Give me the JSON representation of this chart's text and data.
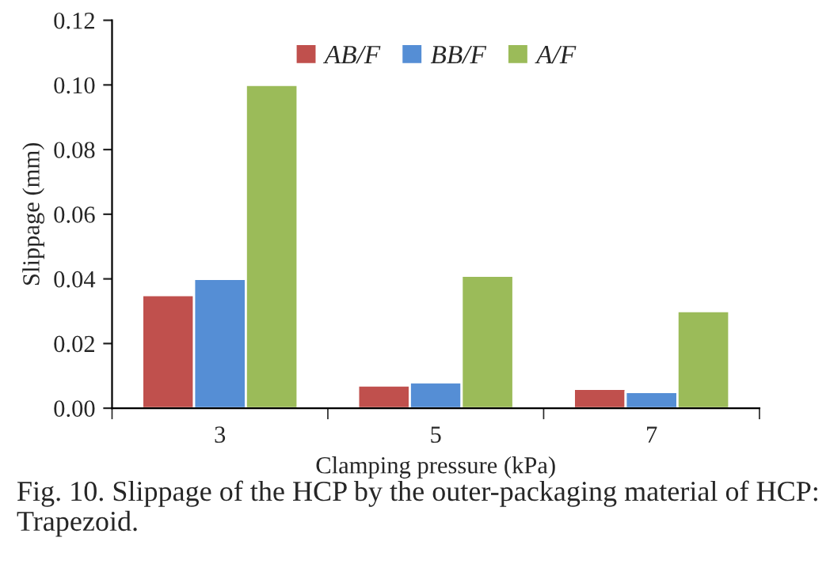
{
  "chart_data": {
    "type": "bar",
    "xlabel": "Clamping pressure (kPa)",
    "ylabel": "Slippage (mm)",
    "categories": [
      "3",
      "5",
      "7"
    ],
    "series": [
      {
        "name": "AB/F",
        "color": "#c0504d",
        "values": [
          0.035,
          0.007,
          0.006
        ]
      },
      {
        "name": "BB/F",
        "color": "#558ed5",
        "values": [
          0.04,
          0.008,
          0.005
        ]
      },
      {
        "name": "A/F",
        "color": "#9bbb59",
        "values": [
          0.1,
          0.041,
          0.03
        ]
      }
    ],
    "ylim": [
      0,
      0.12
    ],
    "yticks": [
      {
        "value": 0,
        "label": "0.00"
      },
      {
        "value": 0.02,
        "label": "0.02"
      },
      {
        "value": 0.04,
        "label": "0.04"
      },
      {
        "value": 0.06,
        "label": "0.06"
      },
      {
        "value": 0.08,
        "label": "0.08"
      },
      {
        "value": 0.1,
        "label": "0.10"
      },
      {
        "value": 0.12,
        "label": "0.12"
      }
    ],
    "grid": false,
    "legend": "top",
    "annotations": [
      "Fig. 10. Slippage of the HCP by the outer-packaging material of HCP: Trapezoid."
    ]
  }
}
